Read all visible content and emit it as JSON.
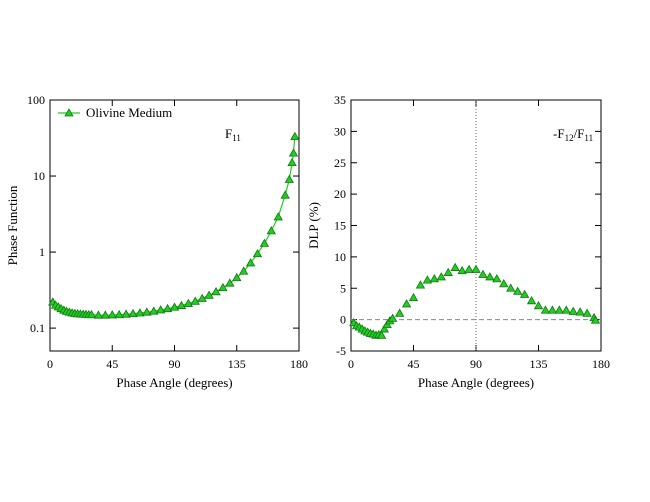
{
  "chart_data": [
    {
      "type": "line",
      "x_label": "Phase Angle (degrees)",
      "y_label": "Phase Function",
      "annotation": [
        "F",
        "11"
      ],
      "xlim": [
        0,
        180
      ],
      "xticks": [
        0,
        45,
        90,
        135,
        180
      ],
      "ylim": [
        0.05,
        100
      ],
      "yticks": [
        0.1,
        1,
        10,
        100
      ],
      "log_y": true,
      "legend": "top-left",
      "x": [
        2,
        4,
        6,
        8,
        10,
        12,
        14,
        16,
        18,
        20,
        22,
        24,
        26,
        28,
        30,
        35,
        40,
        45,
        50,
        55,
        60,
        65,
        70,
        75,
        80,
        85,
        90,
        95,
        100,
        105,
        110,
        115,
        120,
        125,
        130,
        135,
        140,
        145,
        150,
        155,
        160,
        165,
        170,
        173,
        175,
        176,
        177
      ],
      "series": [
        {
          "name": "Olivine Medium",
          "color": "#22cc22",
          "edge": "#117711",
          "values": [
            0.22,
            0.2,
            0.19,
            0.18,
            0.172,
            0.166,
            0.162,
            0.158,
            0.156,
            0.154,
            0.153,
            0.152,
            0.151,
            0.15,
            0.15,
            0.148,
            0.148,
            0.149,
            0.15,
            0.152,
            0.155,
            0.158,
            0.162,
            0.167,
            0.173,
            0.18,
            0.188,
            0.198,
            0.21,
            0.225,
            0.245,
            0.27,
            0.3,
            0.34,
            0.39,
            0.46,
            0.56,
            0.72,
            0.95,
            1.3,
            1.9,
            2.9,
            5.6,
            9,
            15,
            20,
            33
          ]
        }
      ]
    },
    {
      "type": "scatter",
      "x_label": "Phase Angle (degrees)",
      "y_label": "DLP (%)",
      "annotation": [
        "-F",
        "12",
        "/F",
        "11"
      ],
      "xlim": [
        0,
        180
      ],
      "xticks": [
        0,
        45,
        90,
        135,
        180
      ],
      "ylim": [
        -5,
        35
      ],
      "yticks": [
        -5,
        0,
        5,
        10,
        15,
        20,
        25,
        30,
        35
      ],
      "reference_lines": {
        "x": 90,
        "y": 0
      },
      "x": [
        2,
        4,
        6,
        8,
        10,
        12,
        14,
        16,
        18,
        20,
        22,
        24,
        26,
        28,
        30,
        35,
        40,
        45,
        50,
        55,
        60,
        65,
        70,
        75,
        80,
        85,
        90,
        95,
        100,
        105,
        110,
        115,
        120,
        125,
        130,
        135,
        140,
        145,
        150,
        155,
        160,
        165,
        170,
        175,
        176
      ],
      "series": [
        {
          "color": "#22cc22",
          "edge": "#117711",
          "values": [
            -0.5,
            -1,
            -1.2,
            -1.5,
            -1.8,
            -2,
            -2.2,
            -2.3,
            -2.5,
            -2.4,
            -2.5,
            -1.5,
            -0.8,
            -0.2,
            0.2,
            1,
            2.5,
            3.5,
            5.5,
            6.3,
            6.5,
            6.8,
            7.5,
            8.3,
            7.8,
            8,
            8,
            7.2,
            6.8,
            6.5,
            5.7,
            5,
            4.5,
            4,
            3,
            2.2,
            1.5,
            1.5,
            1.5,
            1.5,
            1.3,
            1.2,
            1,
            0.3,
            -0.1
          ]
        }
      ]
    }
  ]
}
